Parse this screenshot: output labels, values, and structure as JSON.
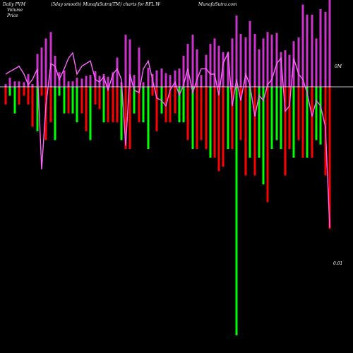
{
  "header": {
    "legend_pvm": "Daily PVM",
    "subtitle": "(5day smooth) MunafaSutra(TM) charts for RFL.W",
    "watermark": "MunafaSutra.com",
    "legend_volume": "Volume",
    "legend_price": "Price"
  },
  "chart_data": {
    "type": "bar",
    "zero_label": "0M",
    "price_low_label": "0.01",
    "colors": {
      "background": "#000000",
      "volume": "#cc33cc",
      "pvm_up": "#00ff00",
      "pvm_down": "#ff0000",
      "price_line": "#ff66ff",
      "zero_line": "#ffffff"
    },
    "volume_ylim": [
      0,
      95
    ],
    "pvm_ylim": [
      -300,
      100
    ],
    "price_ylim": [
      0,
      100
    ],
    "x": [
      8,
      14,
      21,
      27,
      34,
      40,
      46,
      53,
      59,
      65,
      72,
      78,
      84,
      91,
      97,
      103,
      109,
      116,
      122,
      128,
      135,
      141,
      147,
      153,
      160,
      166,
      172,
      178,
      184,
      190,
      197,
      203,
      210,
      216,
      222,
      229,
      235,
      241,
      248,
      254,
      260,
      266,
      273,
      279,
      285,
      292,
      298,
      304,
      310,
      316,
      323,
      329,
      335,
      341,
      348,
      354,
      361,
      367,
      373,
      379,
      385,
      392,
      398,
      404,
      410,
      416,
      423,
      429,
      435,
      442,
      448,
      454,
      461,
      467
    ],
    "volume": [
      3,
      10,
      6,
      6,
      5,
      14,
      3,
      36,
      43,
      53,
      60,
      34,
      16,
      18,
      6,
      6,
      10,
      9,
      12,
      13,
      17,
      12,
      14,
      11,
      16,
      32,
      5,
      57,
      52,
      13,
      43,
      5,
      21,
      14,
      18,
      20,
      15,
      13,
      18,
      20,
      34,
      47,
      57,
      41,
      13,
      35,
      47,
      53,
      45,
      38,
      38,
      53,
      78,
      58,
      54,
      72,
      58,
      41,
      53,
      60,
      57,
      59,
      38,
      40,
      35,
      50,
      54,
      90,
      79,
      79,
      53,
      85,
      82,
      100
    ],
    "pvm": [
      -20,
      -10,
      -30,
      -20,
      -10,
      -20,
      -45,
      -50,
      -10,
      -60,
      -40,
      -60,
      -10,
      -30,
      -30,
      -30,
      -40,
      -30,
      -50,
      -60,
      -20,
      -25,
      -40,
      -40,
      -40,
      -40,
      -60,
      -70,
      -70,
      -30,
      -40,
      -40,
      -70,
      -10,
      -50,
      -30,
      -40,
      -40,
      -30,
      -40,
      -40,
      -60,
      -70,
      -70,
      -60,
      -70,
      -80,
      -80,
      -95,
      -90,
      -70,
      -70,
      -280,
      -60,
      -100,
      -80,
      -100,
      -80,
      -110,
      -130,
      -70,
      -60,
      -70,
      -100,
      -70,
      -80,
      -60,
      -80,
      -80,
      -80,
      -60,
      -65,
      -100,
      -160
    ],
    "pvm_color": [
      "down",
      "up",
      "up",
      "down",
      "down",
      "down",
      "down",
      "up",
      "down",
      "down",
      "down",
      "up",
      "up",
      "up",
      "down",
      "up",
      "up",
      "down",
      "down",
      "up",
      "down",
      "down",
      "up",
      "down",
      "down",
      "down",
      "up",
      "down",
      "down",
      "up",
      "down",
      "up",
      "up",
      "down",
      "down",
      "up",
      "down",
      "down",
      "down",
      "up",
      "up",
      "down",
      "up",
      "down",
      "down",
      "down",
      "up",
      "down",
      "down",
      "down",
      "up",
      "down",
      "up",
      "down",
      "down",
      "up",
      "down",
      "up",
      "up",
      "down",
      "up",
      "up",
      "up",
      "down",
      "down",
      "up",
      "down",
      "down",
      "up",
      "down",
      "up",
      "up",
      "down",
      "down"
    ],
    "price": [
      72,
      73,
      74,
      75,
      72,
      68,
      70,
      74,
      36,
      60,
      76,
      75,
      70,
      74,
      78,
      80,
      72,
      75,
      76,
      77,
      70,
      69,
      71,
      66,
      72,
      74,
      70,
      45,
      72,
      66,
      65,
      74,
      77,
      70,
      63,
      62,
      60,
      66,
      69,
      64,
      68,
      74,
      65,
      70,
      74,
      74,
      72,
      72,
      64,
      76,
      80,
      60,
      70,
      62,
      72,
      68,
      56,
      64,
      62,
      68,
      70,
      76,
      78,
      58,
      60,
      78,
      72,
      70,
      65,
      56,
      62,
      60,
      52,
      14
    ]
  }
}
